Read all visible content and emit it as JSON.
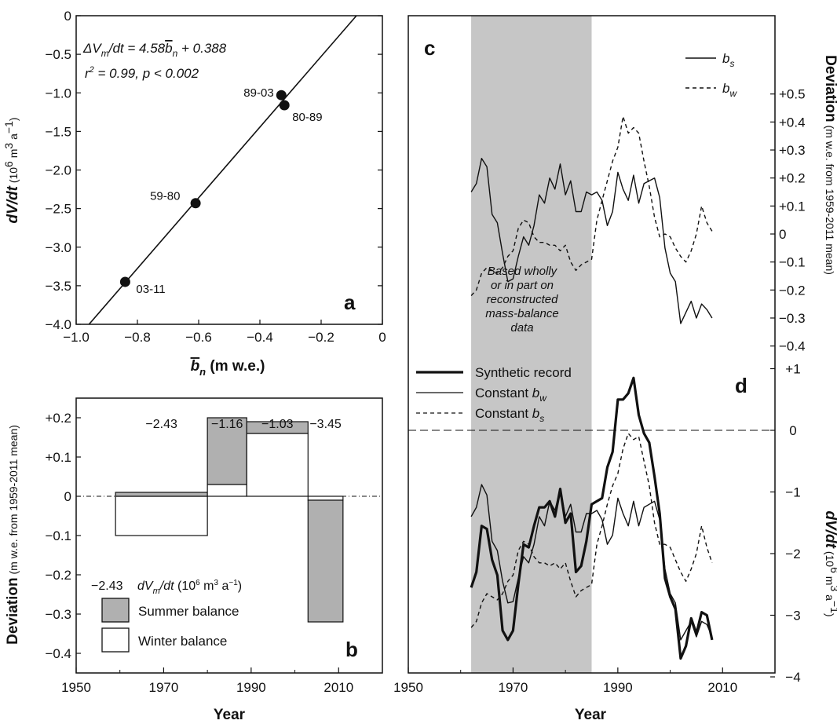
{
  "panels": {
    "a": {
      "letter": "a",
      "equation": "ΔVm/dt = 4.58bn + 0.388",
      "eq_parts": [
        "ΔV",
        "m",
        "/dt = 4.58",
        "b",
        "n",
        " + 0.388"
      ],
      "stats": "r² = 0.99, p < 0.002",
      "stats_parts": [
        "r",
        "2",
        " = 0.99, p < 0.002"
      ],
      "ylabel": "dV/dt (10⁶ m³ a⁻¹)",
      "ylabel_parts": [
        "dV/dt",
        " (10",
        "6",
        " m",
        "3",
        " a",
        "−1",
        ")"
      ],
      "xlabel": "bn (m w.e.)",
      "xlabel_parts": [
        "b",
        "n",
        " (m w.e.)"
      ]
    },
    "b": {
      "letter": "b",
      "ylabel": "Deviation (m w.e. from 1959-2011 mean)",
      "ylabel_parts": [
        "Deviation",
        " (m w.e. from 1959-2011 mean)"
      ],
      "xlabel": "Year",
      "legend_value": "−2.43",
      "legend_title": "dVm/dt (10⁶ m³ a⁻¹)",
      "legend_title_parts": [
        "dV",
        "m",
        "/dt",
        " (10",
        "6",
        " m",
        "3",
        " a",
        "−1",
        ")"
      ],
      "legend_summer": "Summer balance",
      "legend_winter": "Winter balance"
    },
    "c": {
      "letter": "c",
      "ylabel": "Deviation (m w.e. from 1959-2011 mean)",
      "ylabel_parts": [
        "Deviation",
        " (m w.e. from 1959-2011 mean)"
      ],
      "legend_bs": "bs",
      "legend_bw": "bw",
      "legend_bs_parts": [
        "b",
        "s"
      ],
      "legend_bw_parts": [
        "b",
        "w"
      ],
      "shaded_note": [
        "Based wholly",
        "or in part on",
        "reconstructed",
        "mass-balance",
        "data"
      ]
    },
    "d": {
      "letter": "d",
      "ylabel": "dV/dt (10⁶ m³ a⁻¹)",
      "ylabel_parts": [
        "dV/dt",
        " (10",
        "6",
        " m",
        "3",
        " a",
        "−1",
        ")"
      ],
      "xlabel": "Year",
      "legend_synthetic": "Synthetic record",
      "legend_const_bw": "Constant bw",
      "legend_const_bs": "Constant bs",
      "legend_const_bw_parts": [
        "Constant ",
        "b",
        "w"
      ],
      "legend_const_bs_parts": [
        "Constant ",
        "b",
        "s"
      ]
    }
  },
  "chart_data": [
    {
      "panel": "a",
      "type": "scatter",
      "xlabel": "bn (m w.e.)",
      "ylabel": "dV/dt (10⁶ m³ a⁻¹)",
      "xlim": [
        -1.0,
        0
      ],
      "ylim": [
        -4.0,
        0
      ],
      "x_ticks": [
        "−1.0",
        "−0.8",
        "−0.6",
        "−0.4",
        "−0.2",
        "0"
      ],
      "y_ticks": [
        "−4.0",
        "−3.5",
        "−3.0",
        "−2.5",
        "−2.0",
        "−1.5",
        "−1.0",
        "−0.5",
        "0"
      ],
      "points": [
        {
          "label": "89-03",
          "x": -0.33,
          "y": -1.03
        },
        {
          "label": "80-89",
          "x": -0.32,
          "y": -1.16
        },
        {
          "label": "59-80",
          "x": -0.61,
          "y": -2.43
        },
        {
          "label": "03-11",
          "x": -0.84,
          "y": -3.45
        }
      ],
      "fit": {
        "slope": 4.58,
        "intercept": 0.388
      },
      "grid": false
    },
    {
      "panel": "b",
      "type": "bar",
      "xlabel": "Year",
      "ylabel": "Deviation (m w.e. from 1959-2011 mean)",
      "xlim": [
        1950,
        2020
      ],
      "ylim": [
        -0.45,
        0.25
      ],
      "x_ticks": [
        "1950",
        "1970",
        "1990",
        "2010"
      ],
      "y_ticks": [
        "−0.4",
        "−0.3",
        "−0.2",
        "−0.1",
        "0",
        "+0.1",
        "+0.2"
      ],
      "periods": [
        {
          "start": 1959,
          "end": 1980,
          "summer": 0.01,
          "winter": -0.1,
          "dvdt_label": "−2.43"
        },
        {
          "start": 1980,
          "end": 1989,
          "summer": 0.17,
          "winter": 0.03,
          "dvdt_label": "−1.16"
        },
        {
          "start": 1989,
          "end": 2003,
          "summer": 0.03,
          "winter": 0.16,
          "dvdt_label": "−1.03"
        },
        {
          "start": 2003,
          "end": 2011,
          "summer": -0.31,
          "winter": -0.01,
          "dvdt_label": "−3.45"
        }
      ],
      "colors": {
        "summer": "#b0b0b0",
        "winter": "#ffffff"
      },
      "legend": [
        "Summer balance",
        "Winter balance"
      ],
      "legend_placement": "bottom-left"
    },
    {
      "panel": "c",
      "type": "line",
      "ylabel": "Deviation (m w.e. from 1959-2011 mean)",
      "xlim": [
        1950,
        2020
      ],
      "ylim": [
        -0.45,
        0.6
      ],
      "y_ticks": [
        "+0.5",
        "+0.4",
        "+0.3",
        "+0.2",
        "+0.1",
        "0",
        "−0.1",
        "−0.2",
        "−0.3",
        "−0.4"
      ],
      "x": [
        1962,
        1963,
        1964,
        1965,
        1966,
        1967,
        1968,
        1969,
        1970,
        1971,
        1972,
        1973,
        1974,
        1975,
        1976,
        1977,
        1978,
        1979,
        1980,
        1981,
        1982,
        1983,
        1984,
        1985,
        1986,
        1987,
        1988,
        1989,
        1990,
        1991,
        1992,
        1993,
        1994,
        1995,
        1996,
        1997,
        1998,
        1999,
        2000,
        2001,
        2002,
        2003,
        2004,
        2005,
        2006,
        2007,
        2008
      ],
      "series": [
        {
          "name": "bs",
          "style": "solid",
          "values": [
            0.15,
            0.18,
            0.27,
            0.24,
            0.07,
            0.04,
            -0.07,
            -0.17,
            -0.16,
            -0.08,
            -0.01,
            -0.04,
            0.03,
            0.14,
            0.11,
            0.2,
            0.16,
            0.25,
            0.14,
            0.19,
            0.08,
            0.08,
            0.15,
            0.14,
            0.15,
            0.12,
            0.03,
            0.08,
            0.22,
            0.16,
            0.12,
            0.21,
            0.11,
            0.18,
            0.19,
            0.2,
            0.13,
            -0.05,
            -0.14,
            -0.17,
            -0.32,
            -0.28,
            -0.24,
            -0.3,
            -0.25,
            -0.27,
            -0.3
          ]
        },
        {
          "name": "bw",
          "style": "dashed",
          "values": [
            -0.22,
            -0.2,
            -0.14,
            -0.12,
            -0.13,
            -0.14,
            -0.12,
            -0.08,
            -0.06,
            0.02,
            0.05,
            0.04,
            -0.01,
            -0.03,
            -0.03,
            -0.04,
            -0.04,
            -0.06,
            -0.04,
            -0.1,
            -0.13,
            -0.11,
            -0.1,
            -0.09,
            0.05,
            0.12,
            0.19,
            0.26,
            0.31,
            0.42,
            0.36,
            0.38,
            0.36,
            0.26,
            0.17,
            0.06,
            -0.01,
            0.0,
            -0.01,
            -0.05,
            -0.08,
            -0.1,
            -0.06,
            0.0,
            0.1,
            0.04,
            0.01
          ]
        }
      ],
      "shaded_span": [
        1962,
        1985
      ],
      "legend_placement": "top-right"
    },
    {
      "panel": "d",
      "type": "line",
      "xlabel": "Year",
      "ylabel": "dV/dt (10⁶ m³ a⁻¹)",
      "xlim": [
        1950,
        2020
      ],
      "ylim": [
        -4.25,
        1.4
      ],
      "x_ticks": [
        "1950",
        "1970",
        "1990",
        "2010"
      ],
      "y_ticks": [
        "+1",
        "0",
        "−1",
        "−2",
        "−3",
        "−4"
      ],
      "x": [
        1962,
        1963,
        1964,
        1965,
        1966,
        1967,
        1968,
        1969,
        1970,
        1971,
        1972,
        1973,
        1974,
        1975,
        1976,
        1977,
        1978,
        1979,
        1980,
        1981,
        1982,
        1983,
        1984,
        1985,
        1986,
        1987,
        1988,
        1989,
        1990,
        1991,
        1992,
        1993,
        1994,
        1995,
        1996,
        1997,
        1998,
        1999,
        2000,
        2001,
        2002,
        2003,
        2004,
        2005,
        2006,
        2007,
        2008
      ],
      "series": [
        {
          "name": "Synthetic record",
          "style": "thick",
          "values": [
            -2.55,
            -2.3,
            -1.55,
            -1.6,
            -2.1,
            -2.35,
            -3.25,
            -3.4,
            -3.25,
            -2.5,
            -1.85,
            -1.9,
            -1.55,
            -1.25,
            -1.25,
            -1.15,
            -1.4,
            -0.95,
            -1.5,
            -1.35,
            -2.3,
            -2.2,
            -1.8,
            -1.2,
            -1.15,
            -1.1,
            -0.6,
            -0.35,
            0.5,
            0.5,
            0.6,
            0.85,
            0.25,
            -0.05,
            -0.2,
            -0.75,
            -1.35,
            -2.4,
            -2.7,
            -2.9,
            -3.7,
            -3.5,
            -3.05,
            -3.3,
            -2.95,
            -3.0,
            -3.4
          ]
        },
        {
          "name": "Constant bw",
          "style": "thin",
          "values": [
            -1.4,
            -1.25,
            -0.88,
            -1.05,
            -1.8,
            -1.95,
            -2.45,
            -2.8,
            -2.78,
            -2.4,
            -2.05,
            -2.15,
            -1.85,
            -1.4,
            -1.55,
            -1.15,
            -1.3,
            -0.95,
            -1.4,
            -1.2,
            -1.65,
            -1.65,
            -1.35,
            -1.35,
            -1.3,
            -1.45,
            -1.85,
            -1.7,
            -1.1,
            -1.35,
            -1.55,
            -1.15,
            -1.55,
            -1.25,
            -1.2,
            -1.15,
            -1.45,
            -2.25,
            -2.65,
            -2.8,
            -3.4,
            -3.25,
            -3.1,
            -3.35,
            -3.1,
            -3.15,
            -3.35
          ]
        },
        {
          "name": "Constant bs",
          "style": "dashed",
          "values": [
            -3.2,
            -3.1,
            -2.8,
            -2.65,
            -2.7,
            -2.75,
            -2.65,
            -2.45,
            -2.35,
            -1.95,
            -1.8,
            -1.85,
            -2.05,
            -2.15,
            -2.15,
            -2.2,
            -2.15,
            -2.25,
            -2.15,
            -2.45,
            -2.7,
            -2.6,
            -2.55,
            -2.5,
            -1.85,
            -1.55,
            -1.2,
            -0.9,
            -0.7,
            -0.3,
            -0.05,
            -0.15,
            -0.1,
            -0.5,
            -0.9,
            -1.5,
            -1.85,
            -1.85,
            -1.9,
            -2.1,
            -2.3,
            -2.45,
            -2.25,
            -2.0,
            -1.55,
            -1.9,
            -2.15
          ]
        }
      ],
      "zero_line": true,
      "shaded_span": [
        1962,
        1985
      ],
      "legend_placement": "top-left"
    }
  ]
}
